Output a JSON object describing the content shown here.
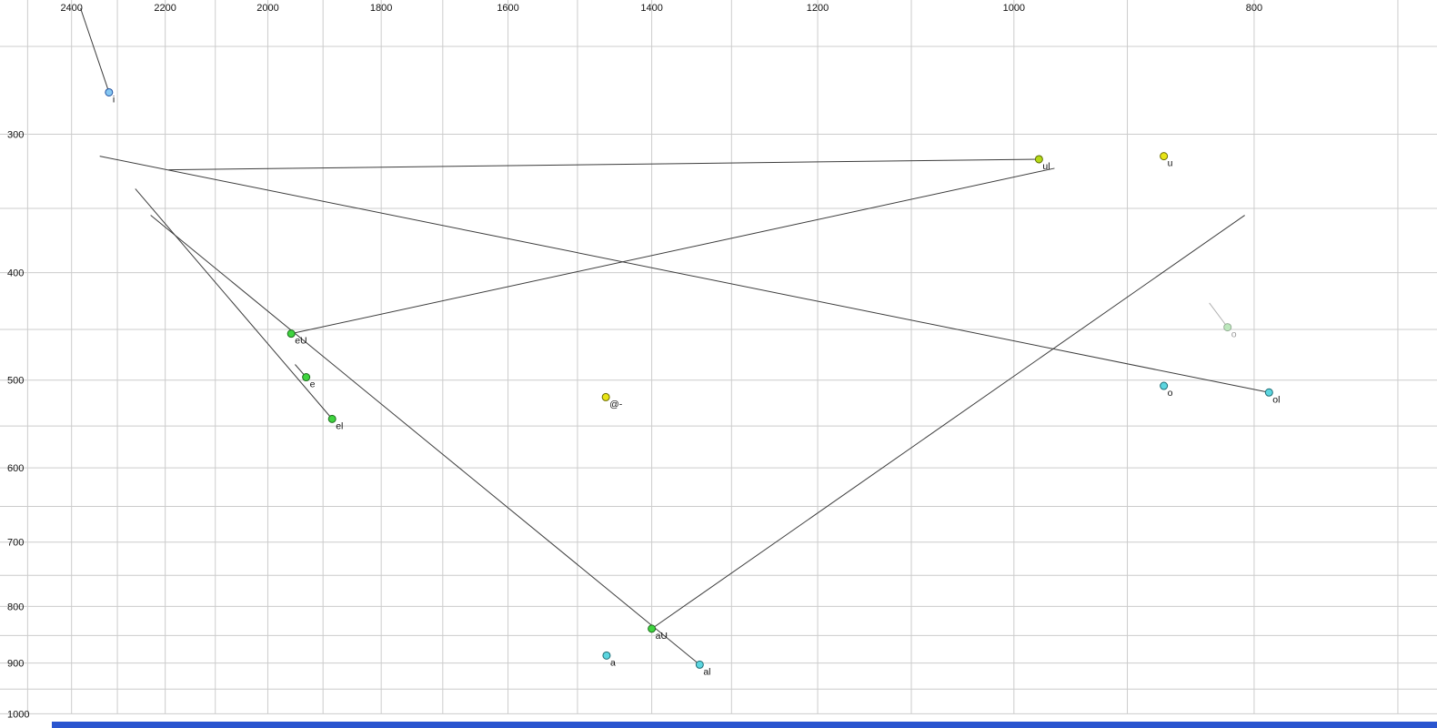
{
  "chart_data": {
    "type": "scatter",
    "title": "",
    "x_axis": {
      "position": "top",
      "scale": "log",
      "reversed": true,
      "ticks": [
        "2400",
        "2200",
        "2000",
        "1800",
        "1600",
        "1400",
        "1200",
        "1000",
        "800"
      ],
      "tick_values": [
        2400,
        2200,
        2000,
        1800,
        1600,
        1400,
        1200,
        1000,
        800
      ],
      "range_hz": [
        2565,
        675
      ],
      "gridline_step_hz": 100,
      "gridline_min_hz": 700,
      "gridline_max_hz": 2500
    },
    "y_axis": {
      "position": "left",
      "scale": "log",
      "ticks": [
        "300",
        "400",
        "500",
        "600",
        "700",
        "800",
        "900",
        "1000"
      ],
      "tick_values": [
        300,
        400,
        500,
        600,
        700,
        800,
        900,
        1000
      ],
      "range_hz": [
        227,
        1030
      ],
      "gridline_step_hz": 50,
      "gridline_min_hz": 250,
      "gridline_max_hz": 1000
    },
    "grid_color": "#cccccc",
    "trajectory_color": "#3c3c3c",
    "label_color": "#111111",
    "points": [
      {
        "label": "i",
        "f2": 2318,
        "f1": 275,
        "fill": "#85c7f2",
        "stroke": "#1f4f9e",
        "glide": {
          "f2": 2380,
          "f1": 231
        }
      },
      {
        "label": "ul",
        "f2": 977,
        "f1": 316,
        "fill": "#b5d916",
        "stroke": "#5a6b00",
        "glide": {
          "f2": 2193,
          "f1": 323
        }
      },
      {
        "label": "u",
        "f2": 870,
        "f1": 314,
        "fill": "#e8e416",
        "stroke": "#6b6b00"
      },
      {
        "label": "eU",
        "f2": 1957,
        "f1": 454,
        "fill": "#3fd43f",
        "stroke": "#1c6b1c",
        "glide": {
          "f2": 963,
          "f1": 322
        }
      },
      {
        "label": "e",
        "f2": 1930,
        "f1": 497,
        "fill": "#3fd43f",
        "stroke": "#1c6b1c",
        "glide": {
          "f2": 1950,
          "f1": 484
        }
      },
      {
        "label": "el",
        "f2": 1884,
        "f1": 542,
        "fill": "#3fd43f",
        "stroke": "#1c6b1c",
        "glide": {
          "f2": 2262,
          "f1": 336
        }
      },
      {
        "label": "@-",
        "f2": 1461,
        "f1": 518,
        "fill": "#e8e416",
        "stroke": "#6b6b00"
      },
      {
        "label": "o",
        "f2": 820,
        "f1": 448,
        "fill": "#bce8bc",
        "stroke": "#96ad96",
        "label_color": "#9a9a9a",
        "glide": {
          "f2": 834,
          "f1": 426
        },
        "glide_color": "#b0b0b0",
        "muted": true
      },
      {
        "label": "o",
        "f2": 870,
        "f1": 506,
        "fill": "#5cd6e0",
        "stroke": "#1f6b73"
      },
      {
        "label": "ol",
        "f2": 789,
        "f1": 513,
        "fill": "#5cd6e0",
        "stroke": "#1f6b73",
        "glide": {
          "f2": 2338,
          "f1": 314
        }
      },
      {
        "label": "aU",
        "f2": 1400,
        "f1": 838,
        "fill": "#3fd43f",
        "stroke": "#1c6b1c",
        "glide": {
          "f2": 807,
          "f1": 355
        }
      },
      {
        "label": "a",
        "f2": 1460,
        "f1": 886,
        "fill": "#5cd6e0",
        "stroke": "#1f6b73"
      },
      {
        "label": "al",
        "f2": 1339,
        "f1": 903,
        "fill": "#5cd6e0",
        "stroke": "#1f6b73",
        "glide": {
          "f2": 2230,
          "f1": 355
        }
      }
    ]
  },
  "window": {
    "bottom_bar_color": "#2a55cf"
  }
}
